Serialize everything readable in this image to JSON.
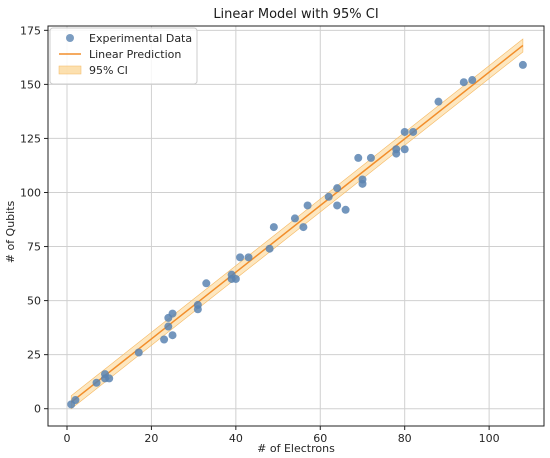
{
  "chart_data": {
    "type": "scatter",
    "title": "Linear Model with 95% CI",
    "xlabel": "# of Electrons",
    "ylabel": "# of Qubits",
    "xlim": [
      -4.5,
      113
    ],
    "ylim": [
      -8,
      177
    ],
    "xticks": [
      0,
      20,
      40,
      60,
      80,
      100
    ],
    "yticks": [
      0,
      25,
      50,
      75,
      100,
      125,
      150,
      175
    ],
    "grid": true,
    "legend_position": "top-left",
    "legend": [
      "Experimental Data",
      "Linear Prediction",
      "95% CI"
    ],
    "colors": {
      "points": "#5b84b1",
      "line": "#f28e2b",
      "ci": "#fbd38d"
    },
    "series": [
      {
        "name": "Experimental Data",
        "kind": "scatter",
        "points": [
          [
            1,
            2
          ],
          [
            2,
            4
          ],
          [
            7,
            12
          ],
          [
            9,
            16
          ],
          [
            9,
            14
          ],
          [
            10,
            14
          ],
          [
            17,
            26
          ],
          [
            23,
            32
          ],
          [
            24,
            38
          ],
          [
            24,
            42
          ],
          [
            25,
            44
          ],
          [
            25,
            34
          ],
          [
            31,
            46
          ],
          [
            31,
            48
          ],
          [
            33,
            58
          ],
          [
            39,
            62
          ],
          [
            39,
            60
          ],
          [
            40,
            60
          ],
          [
            41,
            70
          ],
          [
            43,
            70
          ],
          [
            48,
            74
          ],
          [
            49,
            84
          ],
          [
            54,
            88
          ],
          [
            56,
            84
          ],
          [
            57,
            94
          ],
          [
            62,
            98
          ],
          [
            64,
            102
          ],
          [
            64,
            94
          ],
          [
            66,
            92
          ],
          [
            69,
            116
          ],
          [
            70,
            106
          ],
          [
            70,
            104
          ],
          [
            72,
            116
          ],
          [
            78,
            118
          ],
          [
            78,
            120
          ],
          [
            80,
            120
          ],
          [
            80,
            128
          ],
          [
            82,
            128
          ],
          [
            88,
            142
          ],
          [
            94,
            151
          ],
          [
            96,
            152
          ],
          [
            108,
            159
          ]
        ]
      },
      {
        "name": "Linear Prediction",
        "kind": "line",
        "points": [
          [
            1,
            3
          ],
          [
            108,
            168
          ]
        ]
      },
      {
        "name": "95% CI",
        "kind": "band",
        "lower": [
          [
            1,
            0
          ],
          [
            108,
            165
          ]
        ],
        "upper": [
          [
            1,
            6
          ],
          [
            108,
            171
          ]
        ]
      }
    ]
  }
}
